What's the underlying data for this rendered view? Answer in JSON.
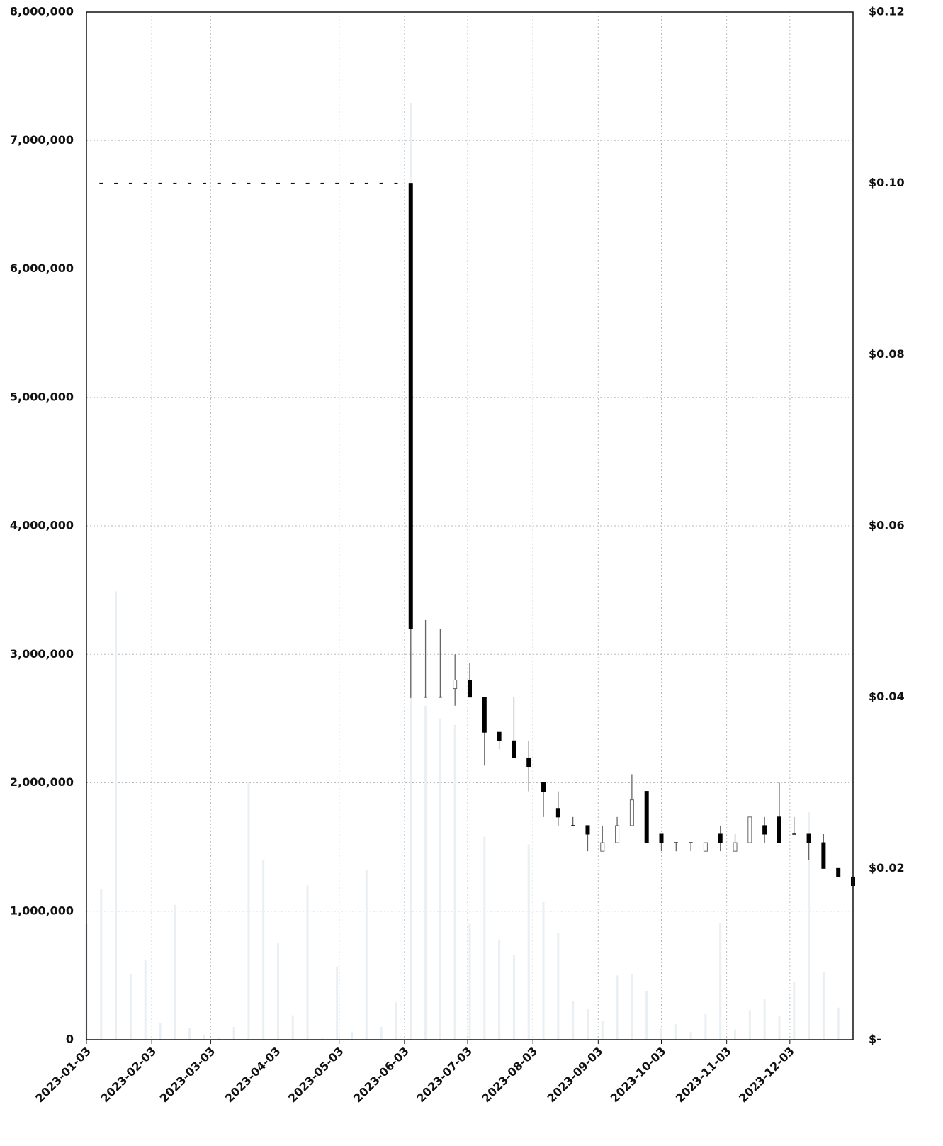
{
  "chart_data": {
    "type": "candlestick",
    "x": [
      "2023-01-03",
      "2023-01-10",
      "2023-01-17",
      "2023-01-24",
      "2023-01-31",
      "2023-02-07",
      "2023-02-14",
      "2023-02-21",
      "2023-02-28",
      "2023-03-07",
      "2023-03-14",
      "2023-03-21",
      "2023-03-28",
      "2023-04-04",
      "2023-04-11",
      "2023-04-18",
      "2023-04-25",
      "2023-05-02",
      "2023-05-09",
      "2023-05-16",
      "2023-05-23",
      "2023-05-30",
      "2023-06-06",
      "2023-06-13",
      "2023-06-20",
      "2023-06-27",
      "2023-07-04",
      "2023-07-11",
      "2023-07-18",
      "2023-07-25",
      "2023-08-01",
      "2023-08-08",
      "2023-08-15",
      "2023-08-22",
      "2023-08-29",
      "2023-09-05",
      "2023-09-12",
      "2023-09-19",
      "2023-09-26",
      "2023-10-03",
      "2023-10-10",
      "2023-10-17",
      "2023-10-24",
      "2023-10-31",
      "2023-11-07",
      "2023-11-14",
      "2023-11-21",
      "2023-11-28",
      "2023-12-05",
      "2023-12-12",
      "2023-12-19",
      "2023-12-26",
      "2024-01-02"
    ],
    "volume": [
      900000,
      1175000,
      3490000,
      510000,
      620000,
      130000,
      1050000,
      90000,
      40000,
      10000,
      100000,
      2000000,
      1400000,
      750000,
      190000,
      1200000,
      10000,
      570000,
      60000,
      1320000,
      100000,
      290000,
      7290000,
      2600000,
      2500000,
      2450000,
      900000,
      1580000,
      780000,
      660000,
      1520000,
      1070000,
      830000,
      300000,
      240000,
      150000,
      500000,
      510000,
      380000,
      90000,
      120000,
      60000,
      200000,
      910000,
      80000,
      230000,
      320000,
      180000,
      450000,
      1770000,
      530000,
      250000,
      0
    ],
    "open": [
      null,
      0.1,
      0.1,
      0.1,
      0.1,
      0.1,
      0.1,
      0.1,
      0.1,
      0.1,
      0.1,
      0.1,
      0.1,
      0.1,
      0.1,
      0.1,
      0.1,
      0.1,
      0.1,
      0.1,
      0.1,
      0.1,
      0.1,
      0.04,
      0.04,
      0.041,
      0.042,
      0.04,
      0.0359,
      0.0349,
      0.0329,
      0.03,
      0.027,
      0.025,
      0.025,
      0.022,
      0.023,
      0.025,
      0.029,
      0.024,
      0.023,
      0.023,
      0.022,
      0.024,
      0.022,
      0.023,
      0.025,
      0.026,
      0.024,
      0.024,
      0.023,
      0.02,
      0.019
    ],
    "high": [
      null,
      0.1,
      0.1,
      0.1,
      0.1,
      0.1,
      0.1,
      0.1,
      0.1,
      0.1,
      0.1,
      0.1,
      0.1,
      0.1,
      0.1,
      0.1,
      0.1,
      0.1,
      0.1,
      0.1,
      0.1,
      0.1,
      0.1,
      0.049,
      0.048,
      0.045,
      0.044,
      0.04,
      0.0359,
      0.04,
      0.0349,
      0.03,
      0.029,
      0.026,
      0.025,
      0.025,
      0.026,
      0.031,
      0.029,
      0.024,
      0.023,
      0.023,
      0.023,
      0.025,
      0.024,
      0.026,
      0.026,
      0.03,
      0.026,
      0.024,
      0.024,
      0.02,
      0.019
    ],
    "low": [
      null,
      0.1,
      0.1,
      0.1,
      0.1,
      0.1,
      0.1,
      0.1,
      0.1,
      0.1,
      0.1,
      0.1,
      0.1,
      0.1,
      0.1,
      0.1,
      0.1,
      0.1,
      0.1,
      0.1,
      0.1,
      0.1,
      0.0399,
      0.04,
      0.04,
      0.039,
      0.04,
      0.032,
      0.0339,
      0.0329,
      0.029,
      0.026,
      0.025,
      0.025,
      0.022,
      0.022,
      0.023,
      0.025,
      0.023,
      0.022,
      0.022,
      0.022,
      0.022,
      0.022,
      0.022,
      0.023,
      0.023,
      0.023,
      0.024,
      0.021,
      0.02,
      0.019,
      0.018
    ],
    "close": [
      null,
      0.1,
      0.1,
      0.1,
      0.1,
      0.1,
      0.1,
      0.1,
      0.1,
      0.1,
      0.1,
      0.1,
      0.1,
      0.1,
      0.1,
      0.1,
      0.1,
      0.1,
      0.1,
      0.1,
      0.1,
      0.1,
      0.048,
      0.04,
      0.04,
      0.042,
      0.04,
      0.0359,
      0.0349,
      0.0329,
      0.0319,
      0.029,
      0.026,
      0.025,
      0.024,
      0.023,
      0.025,
      0.028,
      0.023,
      0.023,
      0.023,
      0.023,
      0.023,
      0.023,
      0.023,
      0.026,
      0.024,
      0.023,
      0.024,
      0.023,
      0.02,
      0.019,
      0.018
    ],
    "volume_color": "#e9eff3",
    "up_color": "#ffffff",
    "down_color": "#000000",
    "wick_color": "#666666",
    "xlim": [
      "2023-01-03",
      "2024-01-02"
    ],
    "xticks": [
      "2023-01-03",
      "2023-02-03",
      "2023-03-03",
      "2023-04-03",
      "2023-05-03",
      "2023-06-03",
      "2023-07-03",
      "2023-08-03",
      "2023-09-03",
      "2023-10-03",
      "2023-11-03",
      "2023-12-03"
    ],
    "ylim": [
      0,
      8000000
    ],
    "yticks": [
      0,
      {
        "value": 1000000,
        "label": "1,000,000"
      },
      {
        "value": 2000000,
        "label": "2,000,000"
      },
      {
        "value": 3000000,
        "label": "3,000,000"
      },
      {
        "value": 4000000,
        "label": "4,000,000"
      },
      {
        "value": 5000000,
        "label": "5,000,000"
      },
      {
        "value": 6000000,
        "label": "6,000,000"
      },
      {
        "value": 7000000,
        "label": "7,000,000"
      },
      {
        "value": 8000000,
        "label": "8,000,000"
      }
    ],
    "y2lim": [
      0,
      0.12
    ],
    "y2ticks": [
      {
        "value": 0,
        "label": "$-"
      },
      {
        "value": 0.02,
        "label": "$0.02"
      },
      {
        "value": 0.04,
        "label": "$0.04"
      },
      {
        "value": 0.06,
        "label": "$0.06"
      },
      {
        "value": 0.08,
        "label": "$0.08"
      },
      {
        "value": 0.1,
        "label": "$0.10"
      },
      {
        "value": 0.12,
        "label": "$0.12"
      }
    ],
    "grid": true
  }
}
